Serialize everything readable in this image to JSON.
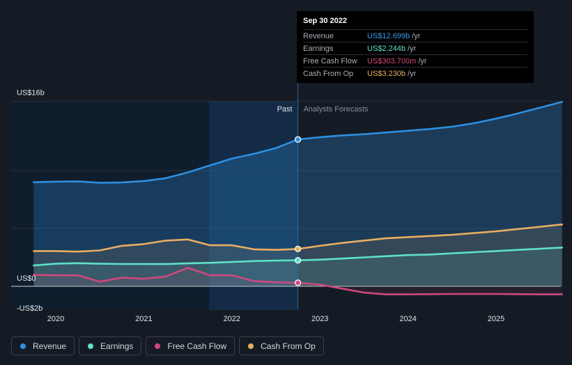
{
  "chart_data": {
    "type": "area",
    "y_axis": {
      "min": -2,
      "max": 16,
      "tick_labels": [
        "US$16b",
        "US$0",
        "-US$2b"
      ],
      "unit": "US$ billions"
    },
    "x_axis": {
      "tick_labels": [
        "2020",
        "2021",
        "2022",
        "2023",
        "2024",
        "2025"
      ]
    },
    "regions": {
      "past_label": "Past",
      "forecast_label": "Analysts Forecasts",
      "divider_x": 2022.75
    },
    "series": [
      {
        "name": "Revenue",
        "color": "#2e8fe0",
        "x": [
          2019.75,
          2020.0,
          2020.25,
          2020.5,
          2020.75,
          2021.0,
          2021.25,
          2021.5,
          2021.75,
          2022.0,
          2022.25,
          2022.5,
          2022.75,
          2023.0,
          2023.25,
          2023.5,
          2023.75,
          2024.0,
          2024.25,
          2024.5,
          2024.75,
          2025.0,
          2025.25,
          2025.5,
          2025.75
        ],
        "y": [
          9.0,
          9.05,
          9.07,
          8.95,
          8.98,
          9.1,
          9.35,
          9.85,
          10.45,
          11.05,
          11.45,
          11.95,
          12.699,
          12.9,
          13.05,
          13.15,
          13.3,
          13.45,
          13.6,
          13.8,
          14.1,
          14.5,
          14.95,
          15.45,
          15.95
        ]
      },
      {
        "name": "Earnings",
        "color": "#5ee1c9",
        "x": [
          2019.75,
          2020.0,
          2020.25,
          2020.5,
          2020.75,
          2021.0,
          2021.25,
          2021.5,
          2021.75,
          2022.0,
          2022.25,
          2022.5,
          2022.75,
          2023.0,
          2023.25,
          2023.5,
          2023.75,
          2024.0,
          2024.25,
          2024.5,
          2024.75,
          2025.0,
          2025.25,
          2025.5,
          2025.75
        ],
        "y": [
          1.8,
          1.95,
          2.0,
          1.95,
          1.93,
          1.93,
          1.92,
          1.98,
          2.03,
          2.1,
          2.18,
          2.22,
          2.244,
          2.3,
          2.4,
          2.5,
          2.6,
          2.7,
          2.75,
          2.85,
          2.95,
          3.05,
          3.15,
          3.25,
          3.35
        ]
      },
      {
        "name": "Free Cash Flow",
        "color": "#d0487f",
        "x": [
          2019.75,
          2020.0,
          2020.25,
          2020.5,
          2020.75,
          2021.0,
          2021.25,
          2021.5,
          2021.75,
          2022.0,
          2022.25,
          2022.5,
          2022.75,
          2023.0,
          2023.25,
          2023.5,
          2023.75,
          2024.0,
          2024.25,
          2024.5,
          2024.75,
          2025.0,
          2025.25,
          2025.5,
          2025.75
        ],
        "y": [
          1.0,
          0.95,
          0.95,
          0.4,
          0.75,
          0.65,
          0.85,
          1.6,
          0.95,
          0.95,
          0.45,
          0.35,
          0.3037,
          0.15,
          -0.2,
          -0.55,
          -0.7,
          -0.7,
          -0.68,
          -0.66,
          -0.66,
          -0.66,
          -0.68,
          -0.7,
          -0.7
        ]
      },
      {
        "name": "Cash From Op",
        "color": "#e9ae62",
        "x": [
          2019.75,
          2020.0,
          2020.25,
          2020.5,
          2020.75,
          2021.0,
          2021.25,
          2021.5,
          2021.75,
          2022.0,
          2022.25,
          2022.5,
          2022.75,
          2023.0,
          2023.25,
          2023.5,
          2023.75,
          2024.0,
          2024.25,
          2024.5,
          2024.75,
          2025.0,
          2025.25,
          2025.5,
          2025.75
        ],
        "y": [
          3.05,
          3.05,
          3.0,
          3.1,
          3.5,
          3.65,
          3.95,
          4.05,
          3.55,
          3.55,
          3.2,
          3.15,
          3.23,
          3.5,
          3.75,
          3.95,
          4.15,
          4.25,
          4.35,
          4.45,
          4.6,
          4.75,
          4.95,
          5.15,
          5.35
        ]
      }
    ],
    "highlight": {
      "date": "Sep 30 2022",
      "x": 2022.75,
      "rows": [
        {
          "label": "Revenue",
          "value": "US$12.699b",
          "unit": "/yr",
          "color": "#3d9ee8"
        },
        {
          "label": "Earnings",
          "value": "US$2.244b",
          "unit": "/yr",
          "color": "#5ee1c9"
        },
        {
          "label": "Free Cash Flow",
          "value": "US$303.700m",
          "unit": "/yr",
          "color": "#d0487f"
        },
        {
          "label": "Cash From Op",
          "value": "US$3.230b",
          "unit": "/yr",
          "color": "#e9ae62"
        }
      ]
    },
    "legend": [
      {
        "label": "Revenue",
        "color": "#2e8fe0"
      },
      {
        "label": "Earnings",
        "color": "#5ee1c9"
      },
      {
        "label": "Free Cash Flow",
        "color": "#d0487f"
      },
      {
        "label": "Cash From Op",
        "color": "#e9ae62"
      }
    ]
  }
}
